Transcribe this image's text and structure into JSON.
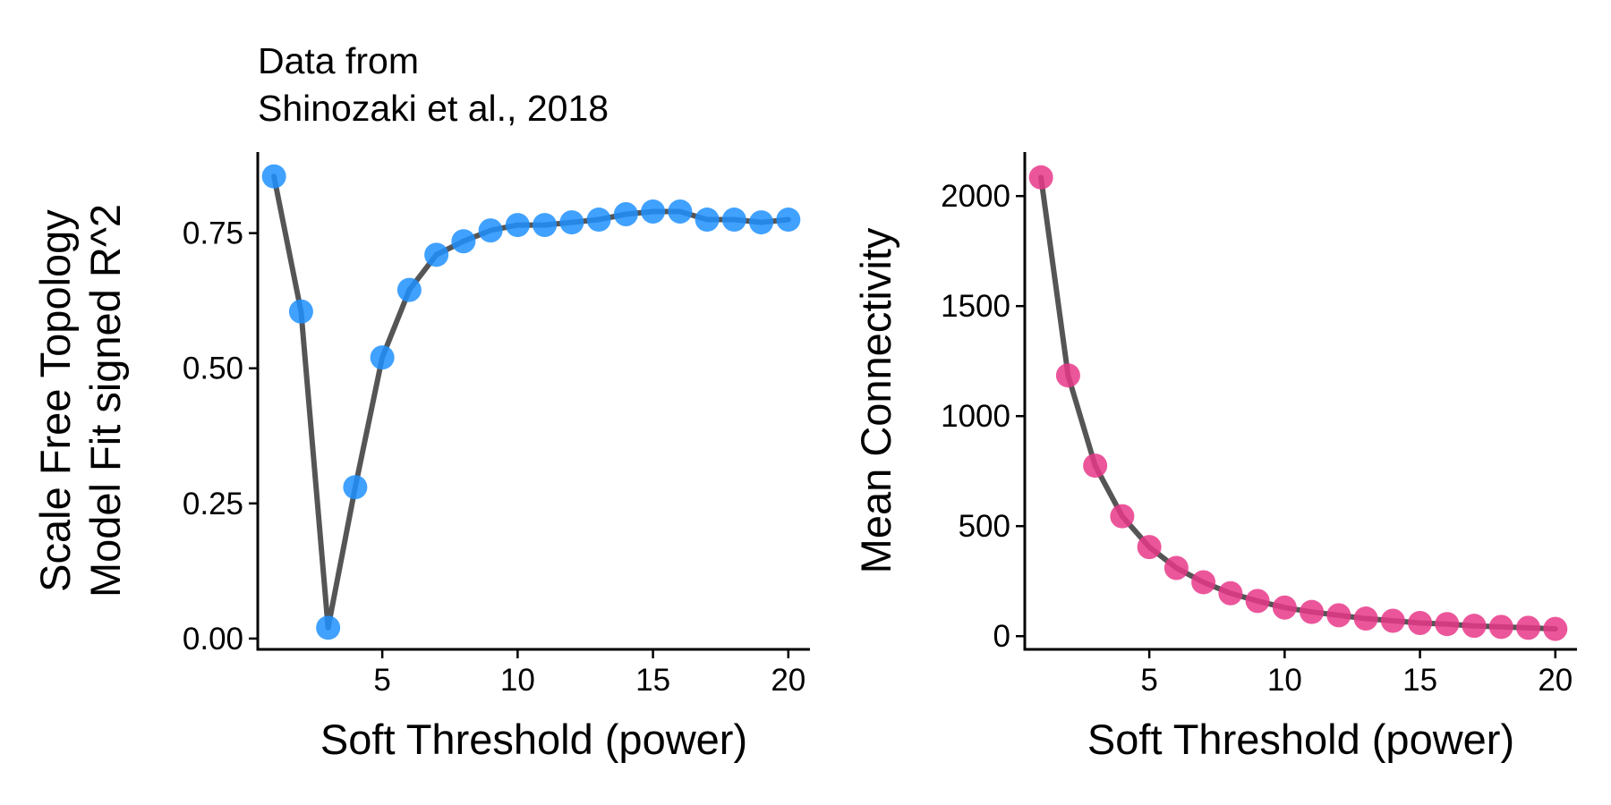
{
  "figure": {
    "title_lines": [
      "Data from",
      "Shinozaki et al., 2018"
    ]
  },
  "chart_data": [
    {
      "type": "scatter",
      "title": "Data from Shinozaki et al., 2018",
      "xlabel": "Soft Threshold (power)",
      "ylabel_lines": [
        "Scale Free Topology",
        "Model Fit signed R^2"
      ],
      "xlim": [
        0.4,
        20.8
      ],
      "ylim": [
        -0.02,
        0.9
      ],
      "xticks": [
        5,
        10,
        15,
        20
      ],
      "yticks": [
        0,
        0.25,
        0.5,
        0.75
      ],
      "ytick_labels": [
        "0.00",
        "0.25",
        "0.50",
        "0.75"
      ],
      "grid": false,
      "point_color": "#1E90FF",
      "line_color": "#555555",
      "x": [
        1,
        2,
        3,
        4,
        5,
        6,
        7,
        8,
        9,
        10,
        11,
        12,
        13,
        14,
        15,
        16,
        17,
        18,
        19,
        20
      ],
      "y": [
        0.855,
        0.605,
        0.02,
        0.28,
        0.52,
        0.645,
        0.71,
        0.735,
        0.755,
        0.765,
        0.765,
        0.77,
        0.775,
        0.785,
        0.79,
        0.79,
        0.775,
        0.775,
        0.77,
        0.775
      ]
    },
    {
      "type": "scatter",
      "xlabel": "Soft Threshold (power)",
      "ylabel_lines": [
        "Mean Connectivity"
      ],
      "xlim": [
        0.4,
        20.8
      ],
      "ylim": [
        -60,
        2200
      ],
      "xticks": [
        5,
        10,
        15,
        20
      ],
      "yticks": [
        0,
        500,
        1000,
        1500,
        2000
      ],
      "ytick_labels": [
        "0",
        "500",
        "1000",
        "1500",
        "2000"
      ],
      "grid": false,
      "point_color": "#E8388A",
      "line_color": "#555555",
      "x": [
        1,
        2,
        3,
        4,
        5,
        6,
        7,
        8,
        9,
        10,
        11,
        12,
        13,
        14,
        15,
        16,
        17,
        18,
        19,
        20
      ],
      "y": [
        2085,
        1185,
        775,
        545,
        405,
        310,
        245,
        195,
        160,
        130,
        110,
        95,
        80,
        70,
        60,
        55,
        47,
        42,
        38,
        33
      ]
    }
  ]
}
